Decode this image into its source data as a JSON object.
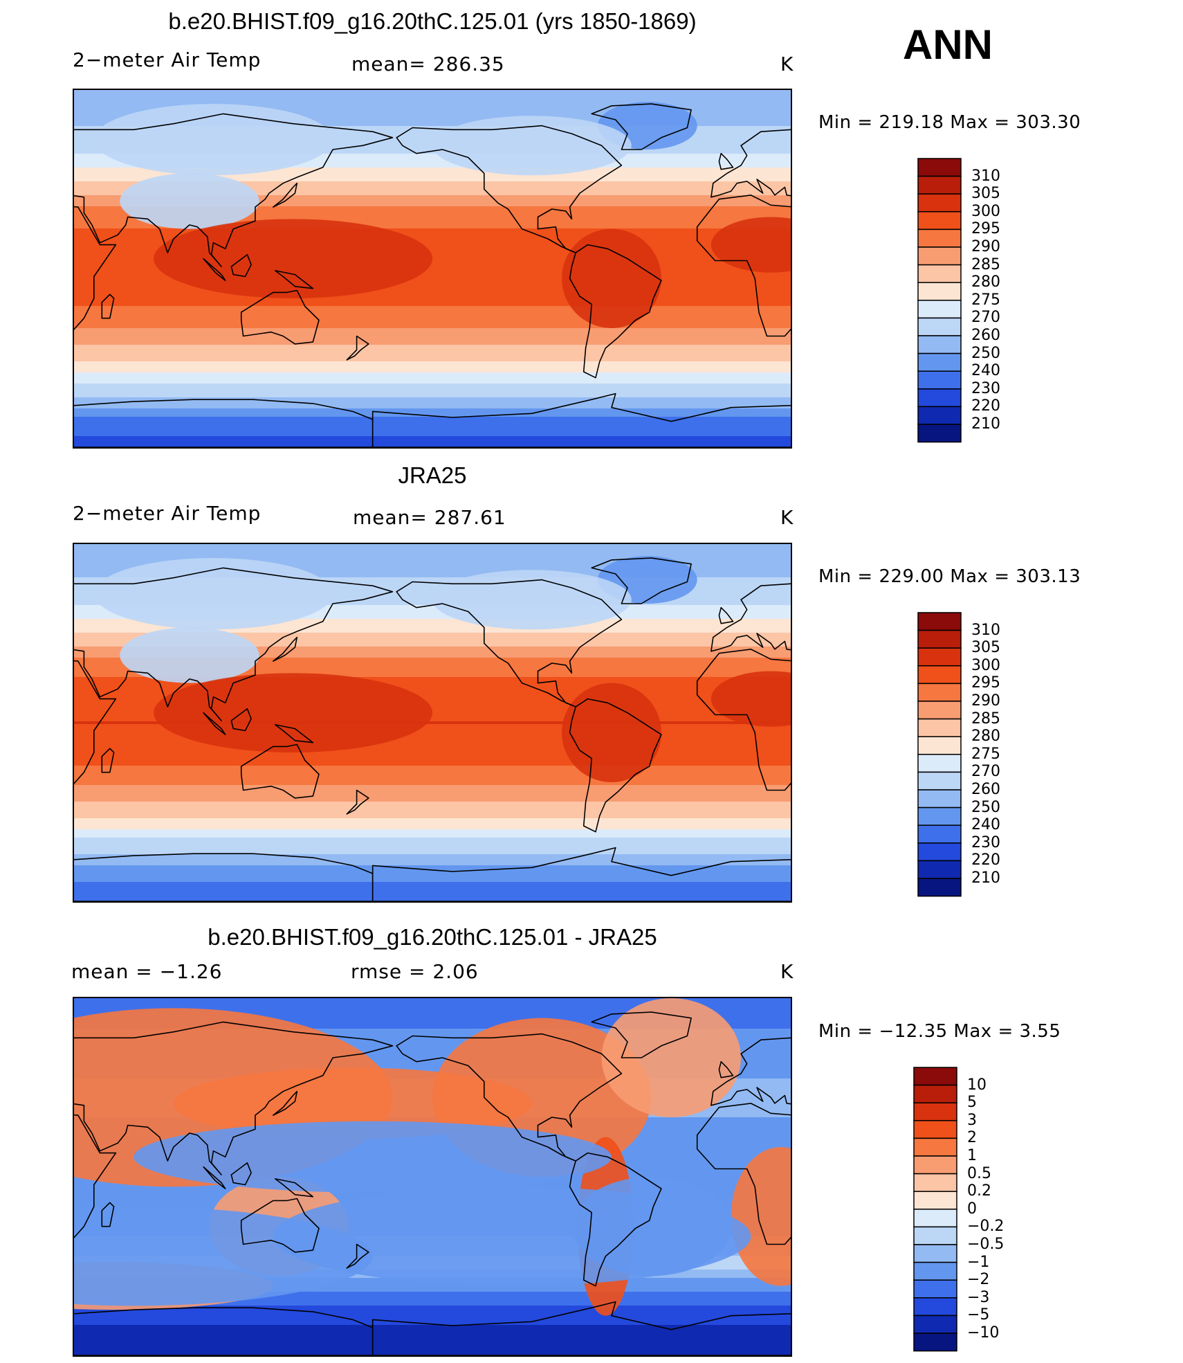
{
  "season": "ANN",
  "panels": [
    {
      "title": "b.e20.BHIST.f09_g16.20thC.125.01 (yrs 1850-1869)",
      "variable": "2−meter Air Temp",
      "stat_text": "mean=  286.35",
      "units": "K",
      "minmax": "Min  =  219.18  Max  =  303.30"
    },
    {
      "title": "JRA25",
      "variable": "2−meter Air Temp",
      "stat_text": "mean=  287.61",
      "units": "K",
      "minmax": "Min  =  229.00  Max  =  303.13"
    },
    {
      "title": "b.e20.BHIST.f09_g16.20thC.125.01 - JRA25",
      "mean_text": "mean  =    −1.26",
      "rmse_text": "rmse  =      2.06",
      "units": "K",
      "minmax": "Min  =  −12.35  Max  =      3.55"
    }
  ],
  "chart_data": [
    {
      "type": "heatmap",
      "title": "b.e20.BHIST.f09_g16.20thC.125.01 (yrs 1850-1869)",
      "field": "2-meter Air Temp",
      "units": "K",
      "mean": 286.35,
      "min": 219.18,
      "max": 303.3,
      "lon_range": [
        30,
        390
      ],
      "lat_range": [
        -90,
        90
      ],
      "zonal_profile": [
        {
          "lat": 90,
          "value": 250
        },
        {
          "lat": 75,
          "value": 258
        },
        {
          "lat": 60,
          "value": 268
        },
        {
          "lat": 45,
          "value": 279
        },
        {
          "lat": 30,
          "value": 291
        },
        {
          "lat": 15,
          "value": 297
        },
        {
          "lat": 0,
          "value": 299
        },
        {
          "lat": -15,
          "value": 297
        },
        {
          "lat": -30,
          "value": 290
        },
        {
          "lat": -45,
          "value": 281
        },
        {
          "lat": -55,
          "value": 273
        },
        {
          "lat": -65,
          "value": 260
        },
        {
          "lat": -75,
          "value": 240
        },
        {
          "lat": -90,
          "value": 225
        }
      ]
    },
    {
      "type": "heatmap",
      "title": "JRA25",
      "field": "2-meter Air Temp",
      "units": "K",
      "mean": 287.61,
      "min": 229.0,
      "max": 303.13,
      "lon_range": [
        30,
        390
      ],
      "lat_range": [
        -90,
        90
      ],
      "zonal_profile": [
        {
          "lat": 90,
          "value": 252
        },
        {
          "lat": 75,
          "value": 259
        },
        {
          "lat": 60,
          "value": 269
        },
        {
          "lat": 45,
          "value": 280
        },
        {
          "lat": 30,
          "value": 292
        },
        {
          "lat": 15,
          "value": 298
        },
        {
          "lat": 0,
          "value": 300
        },
        {
          "lat": -15,
          "value": 298
        },
        {
          "lat": -30,
          "value": 291
        },
        {
          "lat": -45,
          "value": 282
        },
        {
          "lat": -55,
          "value": 274
        },
        {
          "lat": -65,
          "value": 262
        },
        {
          "lat": -75,
          "value": 245
        },
        {
          "lat": -90,
          "value": 232
        }
      ]
    },
    {
      "type": "heatmap",
      "title": "b.e20.BHIST.f09_g16.20thC.125.01 - JRA25",
      "field": "2-meter Air Temp difference",
      "units": "K",
      "mean": -1.26,
      "rmse": 2.06,
      "min": -12.35,
      "max": 3.55,
      "lon_range": [
        30,
        390
      ],
      "lat_range": [
        -90,
        90
      ],
      "zonal_profile": [
        {
          "lat": 90,
          "value": -3
        },
        {
          "lat": 75,
          "value": -2
        },
        {
          "lat": 60,
          "value": -1.5
        },
        {
          "lat": 45,
          "value": -0.8
        },
        {
          "lat": 30,
          "value": -1
        },
        {
          "lat": 15,
          "value": -1.2
        },
        {
          "lat": 0,
          "value": -1.4
        },
        {
          "lat": -15,
          "value": -1.3
        },
        {
          "lat": -30,
          "value": -1
        },
        {
          "lat": -45,
          "value": -0.2
        },
        {
          "lat": -55,
          "value": -1.5
        },
        {
          "lat": -65,
          "value": -3
        },
        {
          "lat": -75,
          "value": -5
        },
        {
          "lat": -90,
          "value": -6
        }
      ]
    }
  ],
  "colorbars": [
    {
      "labels": [
        "310",
        "305",
        "300",
        "295",
        "290",
        "285",
        "280",
        "275",
        "270",
        "260",
        "250",
        "240",
        "230",
        "220",
        "210"
      ],
      "colors": [
        "#8b0a0a",
        "#b81e0a",
        "#d8320e",
        "#f0501a",
        "#f6773f",
        "#f89c72",
        "#fbc5a6",
        "#fde5d3",
        "#dcebfa",
        "#bcd6f6",
        "#93baf2",
        "#6397ef",
        "#3f70eb",
        "#2349dd",
        "#0f2ab0",
        "#061580"
      ]
    },
    {
      "labels": [
        "310",
        "305",
        "300",
        "295",
        "290",
        "285",
        "280",
        "275",
        "270",
        "260",
        "250",
        "240",
        "230",
        "220",
        "210"
      ],
      "colors": [
        "#8b0a0a",
        "#b81e0a",
        "#d8320e",
        "#f0501a",
        "#f6773f",
        "#f89c72",
        "#fbc5a6",
        "#fde5d3",
        "#dcebfa",
        "#bcd6f6",
        "#93baf2",
        "#6397ef",
        "#3f70eb",
        "#2349dd",
        "#0f2ab0",
        "#061580"
      ]
    },
    {
      "labels": [
        "10",
        "5",
        "3",
        "2",
        "1",
        "0.5",
        "0.2",
        "0",
        "−0.2",
        "−0.5",
        "−1",
        "−2",
        "−3",
        "−5",
        "−10"
      ],
      "colors": [
        "#8b0a0a",
        "#b81e0a",
        "#d8320e",
        "#f0501a",
        "#f6773f",
        "#f89c72",
        "#fbc5a6",
        "#fde5d3",
        "#dcebfa",
        "#bcd6f6",
        "#93baf2",
        "#6397ef",
        "#3f70eb",
        "#2349dd",
        "#0f2ab0",
        "#061580"
      ]
    }
  ]
}
